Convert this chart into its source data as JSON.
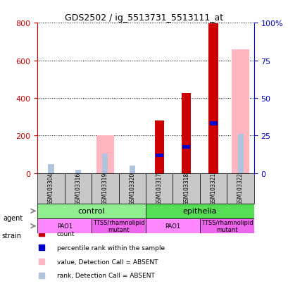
{
  "title": "GDS2502 / ig_5513731_5513111_at",
  "samples": [
    "GSM103304",
    "GSM103316",
    "GSM103319",
    "GSM103320",
    "GSM103317",
    "GSM103318",
    "GSM103321",
    "GSM103322"
  ],
  "count_values": [
    0,
    0,
    0,
    0,
    280,
    425,
    795,
    0
  ],
  "rank_values": [
    0,
    0,
    0,
    0,
    95,
    140,
    265,
    0
  ],
  "absent_value_bars": [
    0,
    0,
    200,
    0,
    0,
    0,
    0,
    660
  ],
  "absent_rank_bars": [
    50,
    20,
    105,
    40,
    0,
    0,
    0,
    210
  ],
  "ylim_left": [
    0,
    800
  ],
  "ylim_right": [
    0,
    100
  ],
  "yticks_left": [
    0,
    200,
    400,
    600,
    800
  ],
  "yticks_right": [
    0,
    25,
    50,
    75,
    100
  ],
  "agent_groups": [
    {
      "label": "control",
      "start": 0,
      "end": 4,
      "color": "#90EE90"
    },
    {
      "label": "epithelia",
      "start": 4,
      "end": 8,
      "color": "#00CC00"
    }
  ],
  "strain_groups": [
    {
      "label": "PAO1",
      "start": 0,
      "end": 2,
      "color": "#FF88FF"
    },
    {
      "label": "TTSS/rhamnolipid\nmutant",
      "start": 2,
      "end": 4,
      "color": "#DD44DD"
    },
    {
      "label": "PAO1",
      "start": 4,
      "end": 6,
      "color": "#FF88FF"
    },
    {
      "label": "TTSS/rhamnolipid\nmutant",
      "start": 6,
      "end": 8,
      "color": "#DD44DD"
    }
  ],
  "bar_width": 0.35,
  "count_color": "#CC0000",
  "rank_color": "#0000CC",
  "absent_value_color": "#FFB6C1",
  "absent_rank_color": "#B0C4DE",
  "grid_color": "#000000",
  "bg_color": "#FFFFFF",
  "left_axis_color": "#CC0000",
  "right_axis_color": "#0000CC"
}
